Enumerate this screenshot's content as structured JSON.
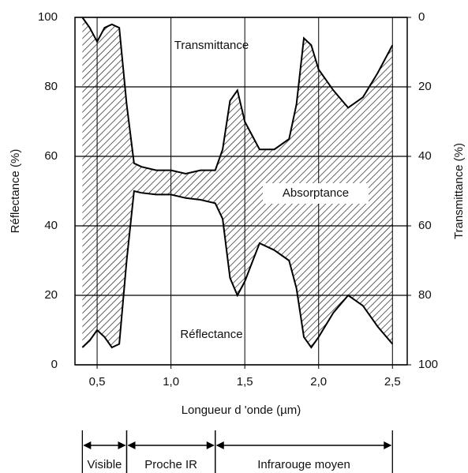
{
  "chart_data": {
    "type": "line",
    "x_label": "Longueur d 'onde (µm)",
    "y_label": "Réflectance (%)",
    "y2_label": "Transmittance (%)",
    "annotations": [
      "Transmittance",
      "Absorptance",
      "Réflectance"
    ],
    "xlim": [
      0.35,
      2.6
    ],
    "xticks": [
      {
        "value": 0.5,
        "label": "0,5"
      },
      {
        "value": 1.0,
        "label": "1,0"
      },
      {
        "value": 1.5,
        "label": "1,5"
      },
      {
        "value": 2.0,
        "label": "2,0"
      },
      {
        "value": 2.5,
        "label": "2,5"
      }
    ],
    "ylim": [
      0,
      100
    ],
    "yticks": [
      0,
      20,
      40,
      60,
      80,
      100
    ],
    "y2lim": [
      100,
      0
    ],
    "y2ticks": [
      0,
      20,
      40,
      60,
      80,
      100
    ],
    "grid": true,
    "hatch": true,
    "x": [
      0.4,
      0.45,
      0.5,
      0.55,
      0.6,
      0.65,
      0.7,
      0.75,
      0.8,
      0.9,
      1.0,
      1.1,
      1.2,
      1.3,
      1.35,
      1.4,
      1.45,
      1.5,
      1.6,
      1.7,
      1.8,
      1.85,
      1.9,
      1.95,
      2.0,
      2.1,
      2.2,
      2.3,
      2.4,
      2.5
    ],
    "series": [
      {
        "name": "Transmittance",
        "axis": "y2",
        "color": "#000000",
        "values": [
          0,
          3,
          7,
          3,
          2,
          3,
          25,
          42,
          43,
          44,
          44,
          45,
          44,
          44,
          38,
          24,
          21,
          30,
          38,
          38,
          35,
          25,
          6,
          8,
          15,
          21,
          26,
          23,
          16,
          8
        ]
      },
      {
        "name": "Réflectance",
        "color": "#000000",
        "values": [
          5,
          7,
          10,
          8,
          5,
          6,
          30,
          50,
          49.5,
          49,
          49,
          48,
          47.5,
          46.5,
          42,
          25,
          20,
          24,
          35,
          33,
          30,
          22,
          8,
          5,
          8,
          15,
          20,
          17,
          11,
          6
        ]
      }
    ],
    "bands": [
      {
        "label": "Visible",
        "start": 0.4,
        "end": 0.7
      },
      {
        "label": "Proche IR",
        "start": 0.7,
        "end": 1.3
      },
      {
        "label": "Infrarouge moyen",
        "start": 1.3,
        "end": 2.5
      }
    ]
  }
}
